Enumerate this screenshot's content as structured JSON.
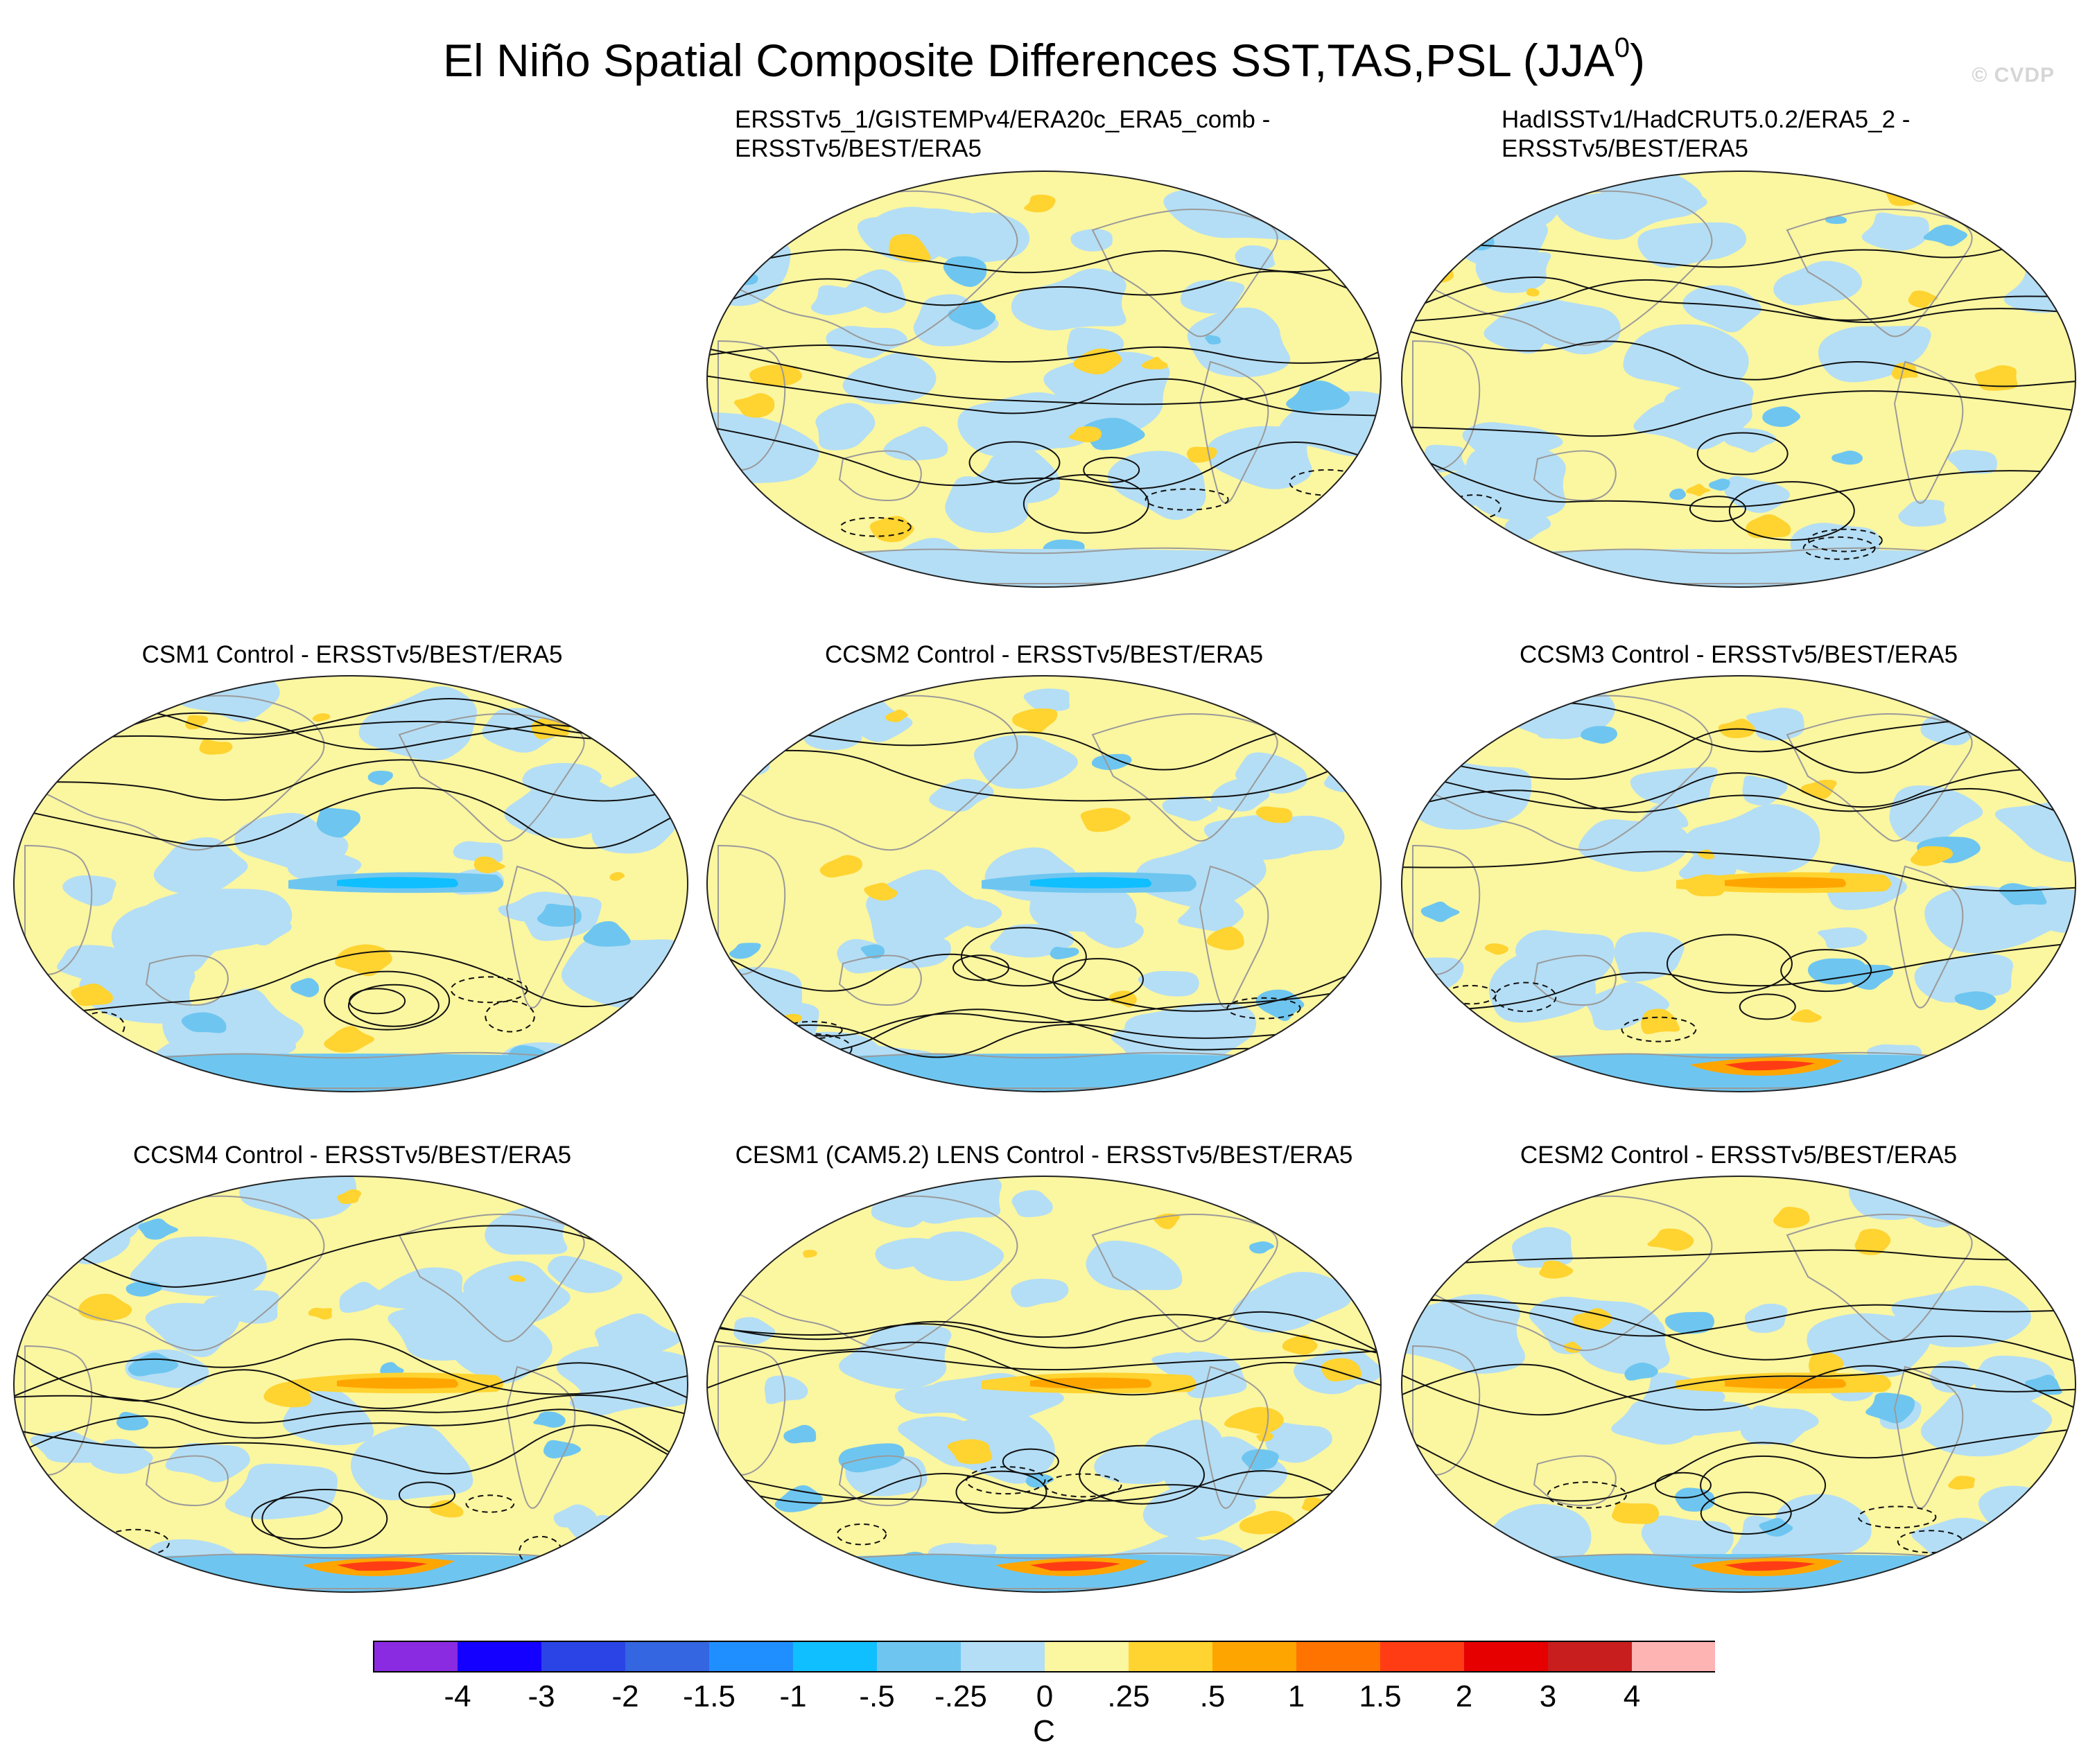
{
  "title": {
    "main": "El Niño Spatial Composite Differences SST,TAS,PSL (JJA",
    "superscript": "0",
    "close": ")"
  },
  "watermark": "© CVDP",
  "panels": [
    {
      "title_line1": "ERSSTv5_1/GISTEMPv4/ERA20c_ERA5_comb -",
      "title_line2": "ERSSTv5/BEST/ERA5"
    },
    {
      "title_line1": "HadISSTv1/HadCRUT5.0.2/ERA5_2 -",
      "title_line2": "ERSSTv5/BEST/ERA5"
    },
    {
      "title": "CSM1 Control - ERSSTv5/BEST/ERA5"
    },
    {
      "title": "CCSM2 Control - ERSSTv5/BEST/ERA5"
    },
    {
      "title": "CCSM3 Control - ERSSTv5/BEST/ERA5"
    },
    {
      "title": "CCSM4 Control - ERSSTv5/BEST/ERA5"
    },
    {
      "title": "CESM1 (CAM5.2) LENS Control - ERSSTv5/BEST/ERA5"
    },
    {
      "title": "CESM2 Control - ERSSTv5/BEST/ERA5"
    }
  ],
  "colorbar": {
    "units": "C",
    "labels": [
      "-4",
      "-3",
      "-2",
      "-1.5",
      "-1",
      "-.5",
      "-.25",
      "0",
      ".25",
      ".5",
      "1",
      "1.5",
      "2",
      "3",
      "4"
    ],
    "colors": [
      "#8a2be2",
      "#1400ff",
      "#2b44e6",
      "#3366e0",
      "#1f8fff",
      "#10bfff",
      "#6ec6f0",
      "#b4def5",
      "#fbf6a0",
      "#ffd330",
      "#ffa500",
      "#ff7400",
      "#ff3c14",
      "#e60000",
      "#c81e1e",
      "#ffb4b4"
    ]
  },
  "colors": {
    "ocean_base": "#fbf6a0",
    "cool_light": "#b4def5",
    "cool_mid": "#6ec6f0",
    "cool_strong": "#10bfff",
    "warm_light": "#ffd330",
    "warm_mid": "#ffa500",
    "warm_strong": "#ff3c14",
    "coast": "#9a9a9a",
    "contour": "#111111"
  }
}
